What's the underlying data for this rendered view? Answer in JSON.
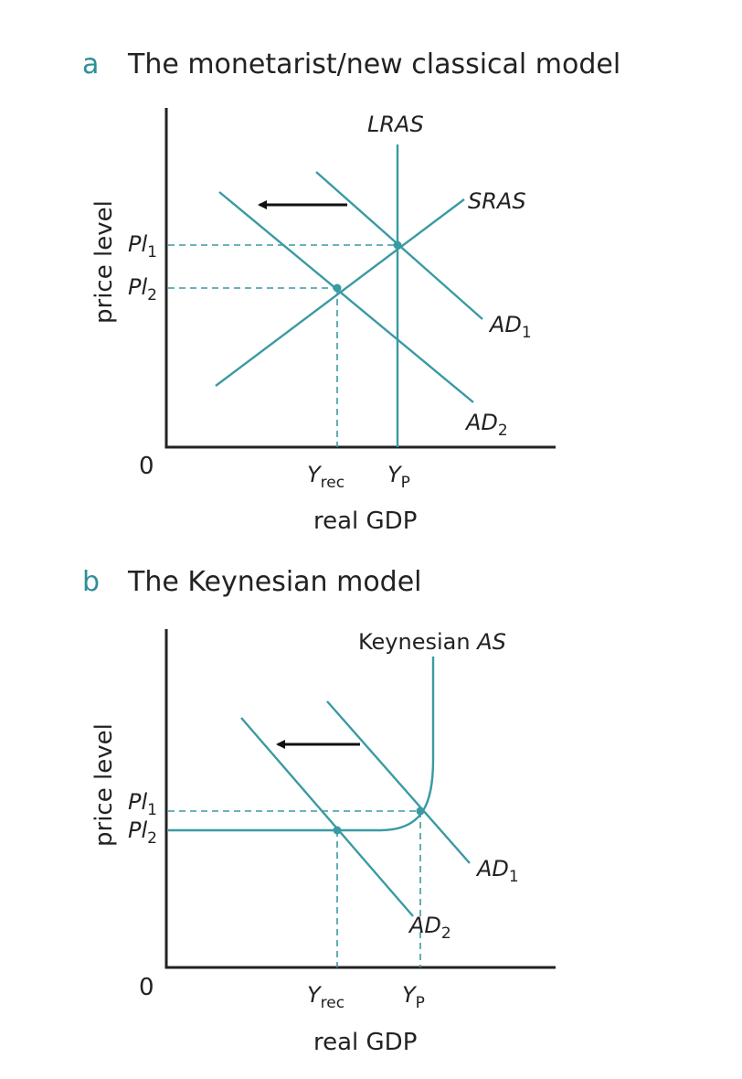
{
  "panel_a": {
    "letter": "a",
    "title": "The monetarist/new classical model",
    "y_axis_label": "price level",
    "x_axis_label": "real GDP",
    "origin_label": "0",
    "curves": {
      "lras": "LRAS",
      "sras": "SRAS",
      "ad1": "AD",
      "ad1_sub": "1",
      "ad2": "AD",
      "ad2_sub": "2"
    },
    "y_ticks": [
      {
        "main": "Pl",
        "sub": "1"
      },
      {
        "main": "Pl",
        "sub": "2"
      }
    ],
    "x_ticks": [
      {
        "main": "Y",
        "sub": "rec"
      },
      {
        "main": "Y",
        "sub": "P"
      }
    ]
  },
  "panel_b": {
    "letter": "b",
    "title": "The Keynesian model",
    "y_axis_label": "price level",
    "x_axis_label": "real GDP",
    "origin_label": "0",
    "curves": {
      "as_prefix": "Keynesian ",
      "as_name": "AS",
      "ad1": "AD",
      "ad1_sub": "1",
      "ad2": "AD",
      "ad2_sub": "2"
    },
    "y_ticks": [
      {
        "main": "Pl",
        "sub": "1"
      },
      {
        "main": "Pl",
        "sub": "2"
      }
    ],
    "x_ticks": [
      {
        "main": "Y",
        "sub": "rec"
      },
      {
        "main": "Y",
        "sub": "P"
      }
    ]
  },
  "colors": {
    "curve": "#3a9aa3",
    "panel_letter": "#2e8f99",
    "axis": "#222222",
    "arrow": "#111111"
  }
}
